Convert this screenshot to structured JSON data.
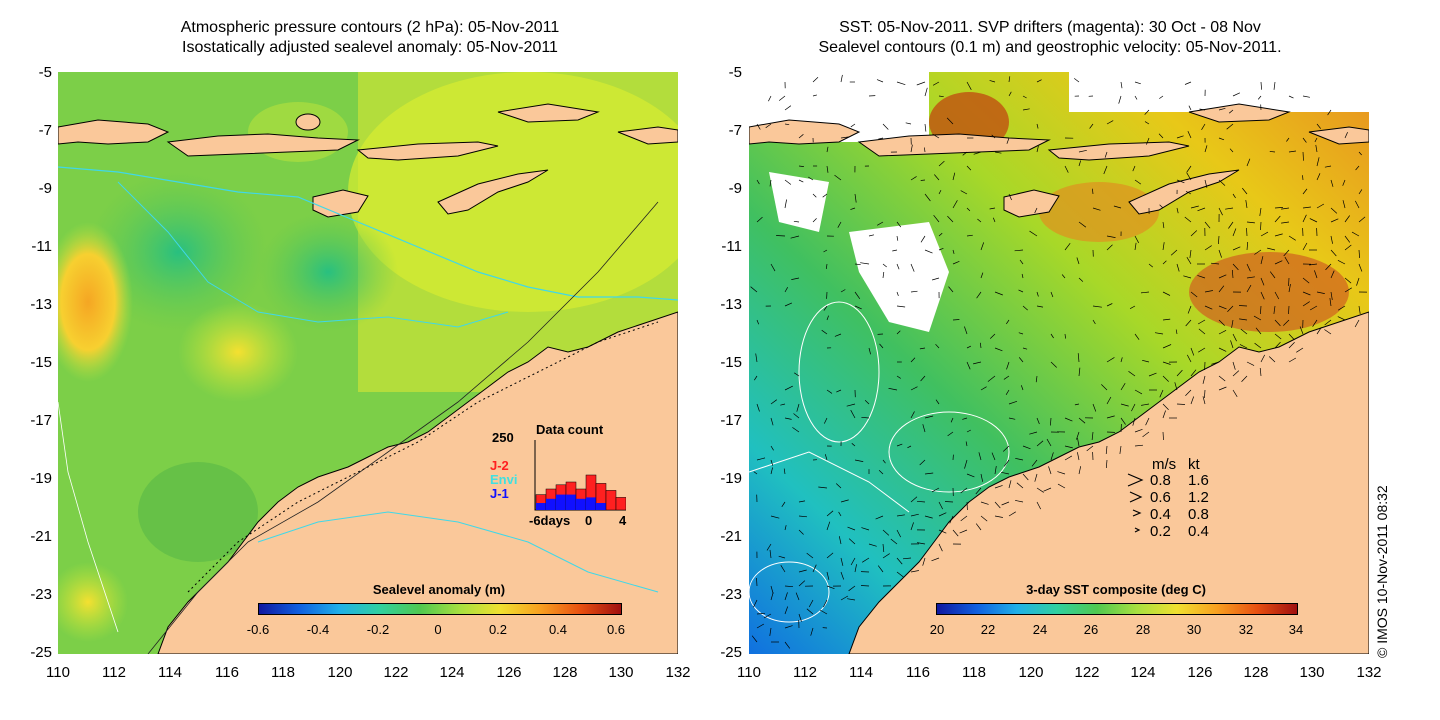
{
  "left_panel": {
    "title_line1": "Atmospheric pressure contours (2 hPa): 05-Nov-2011",
    "title_line2": "Isostatically adjusted sealevel anomaly: 05-Nov-2011",
    "colorbar_title": "Sealevel anomaly (m)",
    "colorbar_ticks": [
      "-0.6",
      "-0.4",
      "-0.2",
      "0",
      "0.2",
      "0.4",
      "0.6"
    ],
    "colors": {
      "ocean": "#8ad63a",
      "land": "#fac89a",
      "contour_cyan": "#40d8e8"
    },
    "histogram": {
      "title": "Data count",
      "y_max_label": "250",
      "x_labels": [
        "-6days",
        "0",
        "4"
      ],
      "legend": [
        {
          "label": "J-2",
          "color": "#ff2020"
        },
        {
          "label": "Envi",
          "color": "#40e0e0"
        },
        {
          "label": "J-1",
          "color": "#1010ff"
        }
      ],
      "total_counts": [
        55,
        75,
        90,
        100,
        75,
        125,
        95,
        70,
        45
      ],
      "blue_counts": [
        25,
        40,
        55,
        55,
        40,
        45,
        25,
        0,
        0
      ]
    }
  },
  "right_panel": {
    "title_line1": "SST: 05-Nov-2011. SVP drifters (magenta): 30 Oct - 08 Nov",
    "title_line2": "Sealevel contours (0.1 m) and geostrophic velocity: 05-Nov-2011.",
    "colorbar_title": "3-day SST composite (deg C)",
    "colorbar_ticks": [
      "20",
      "22",
      "24",
      "26",
      "28",
      "30",
      "32",
      "34"
    ],
    "speed_legend": {
      "header_ms": "m/s",
      "header_kt": "kt",
      "rows": [
        {
          "ms": "0.8",
          "kt": "1.6"
        },
        {
          "ms": "0.6",
          "kt": "1.2"
        },
        {
          "ms": "0.4",
          "kt": "0.8"
        },
        {
          "ms": "0.2",
          "kt": "0.4"
        }
      ]
    }
  },
  "axes": {
    "y_ticks": [
      "-5",
      "-7",
      "-9",
      "-11",
      "-13",
      "-15",
      "-17",
      "-19",
      "-21",
      "-23",
      "-25"
    ],
    "x_ticks": [
      "110",
      "112",
      "114",
      "116",
      "118",
      "120",
      "122",
      "124",
      "126",
      "128",
      "130",
      "132"
    ]
  },
  "credit": "© IMOS 10-Nov-2011 08:32"
}
